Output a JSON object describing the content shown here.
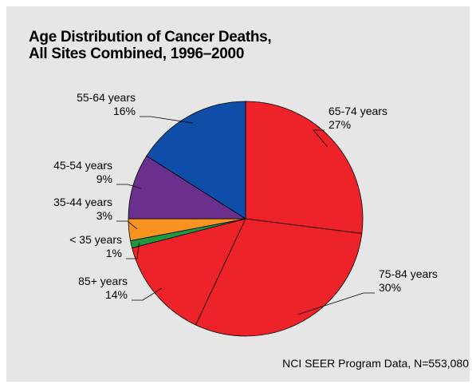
{
  "chart_data": {
    "type": "pie",
    "title": "Age Distribution of Cancer Deaths,\nAll Sites Combined, 1996–2000",
    "categories": [
      "65-74 years",
      "75-84 years",
      "85+ years",
      "< 35 years",
      "35-44 years",
      "45-54 years",
      "55-64 years"
    ],
    "values": [
      27,
      30,
      14,
      1,
      3,
      9,
      16
    ],
    "value_labels": [
      "27%",
      "30%",
      "14%",
      "1%",
      "3%",
      "9%",
      "16%"
    ],
    "colors": [
      "#ee2229",
      "#ee2229",
      "#ee2229",
      "#1e9a3c",
      "#f7931e",
      "#6b2f8e",
      "#0e4ea8"
    ],
    "note": "NCI SEER Program Data, N=553,080"
  }
}
